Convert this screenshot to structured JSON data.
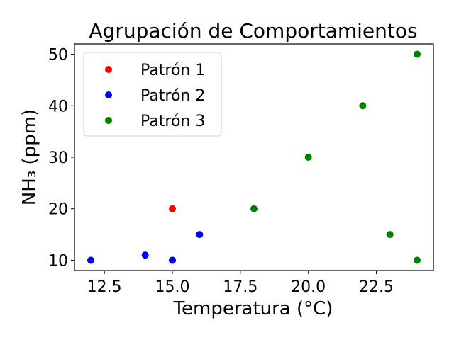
{
  "chart_data": {
    "type": "scatter",
    "title": "Agrupación de Comportamientos",
    "xlabel": "Temperatura (°C)",
    "ylabel": "NH₃ (ppm)",
    "xlim": [
      11.4,
      24.6
    ],
    "ylim": [
      8.0,
      52.0
    ],
    "xticks": [
      12.5,
      15.0,
      17.5,
      20.0,
      22.5
    ],
    "xtick_labels": [
      "12.5",
      "15.0",
      "17.5",
      "20.0",
      "22.5"
    ],
    "yticks": [
      10,
      20,
      30,
      40,
      50
    ],
    "ytick_labels": [
      "10",
      "20",
      "30",
      "40",
      "50"
    ],
    "grid": false,
    "legend_position": "upper-left",
    "series": [
      {
        "name": "Patrón 1",
        "color": "#ff0000",
        "points": [
          [
            15,
            20
          ]
        ]
      },
      {
        "name": "Patrón 2",
        "color": "#0000ff",
        "points": [
          [
            12,
            10
          ],
          [
            14,
            11
          ],
          [
            15,
            10
          ],
          [
            15,
            10
          ],
          [
            16,
            15
          ]
        ]
      },
      {
        "name": "Patrón 3",
        "color": "#008000",
        "points": [
          [
            18,
            20
          ],
          [
            20,
            30
          ],
          [
            22,
            40
          ],
          [
            24,
            50
          ],
          [
            23,
            15
          ],
          [
            24,
            10
          ]
        ]
      }
    ]
  }
}
